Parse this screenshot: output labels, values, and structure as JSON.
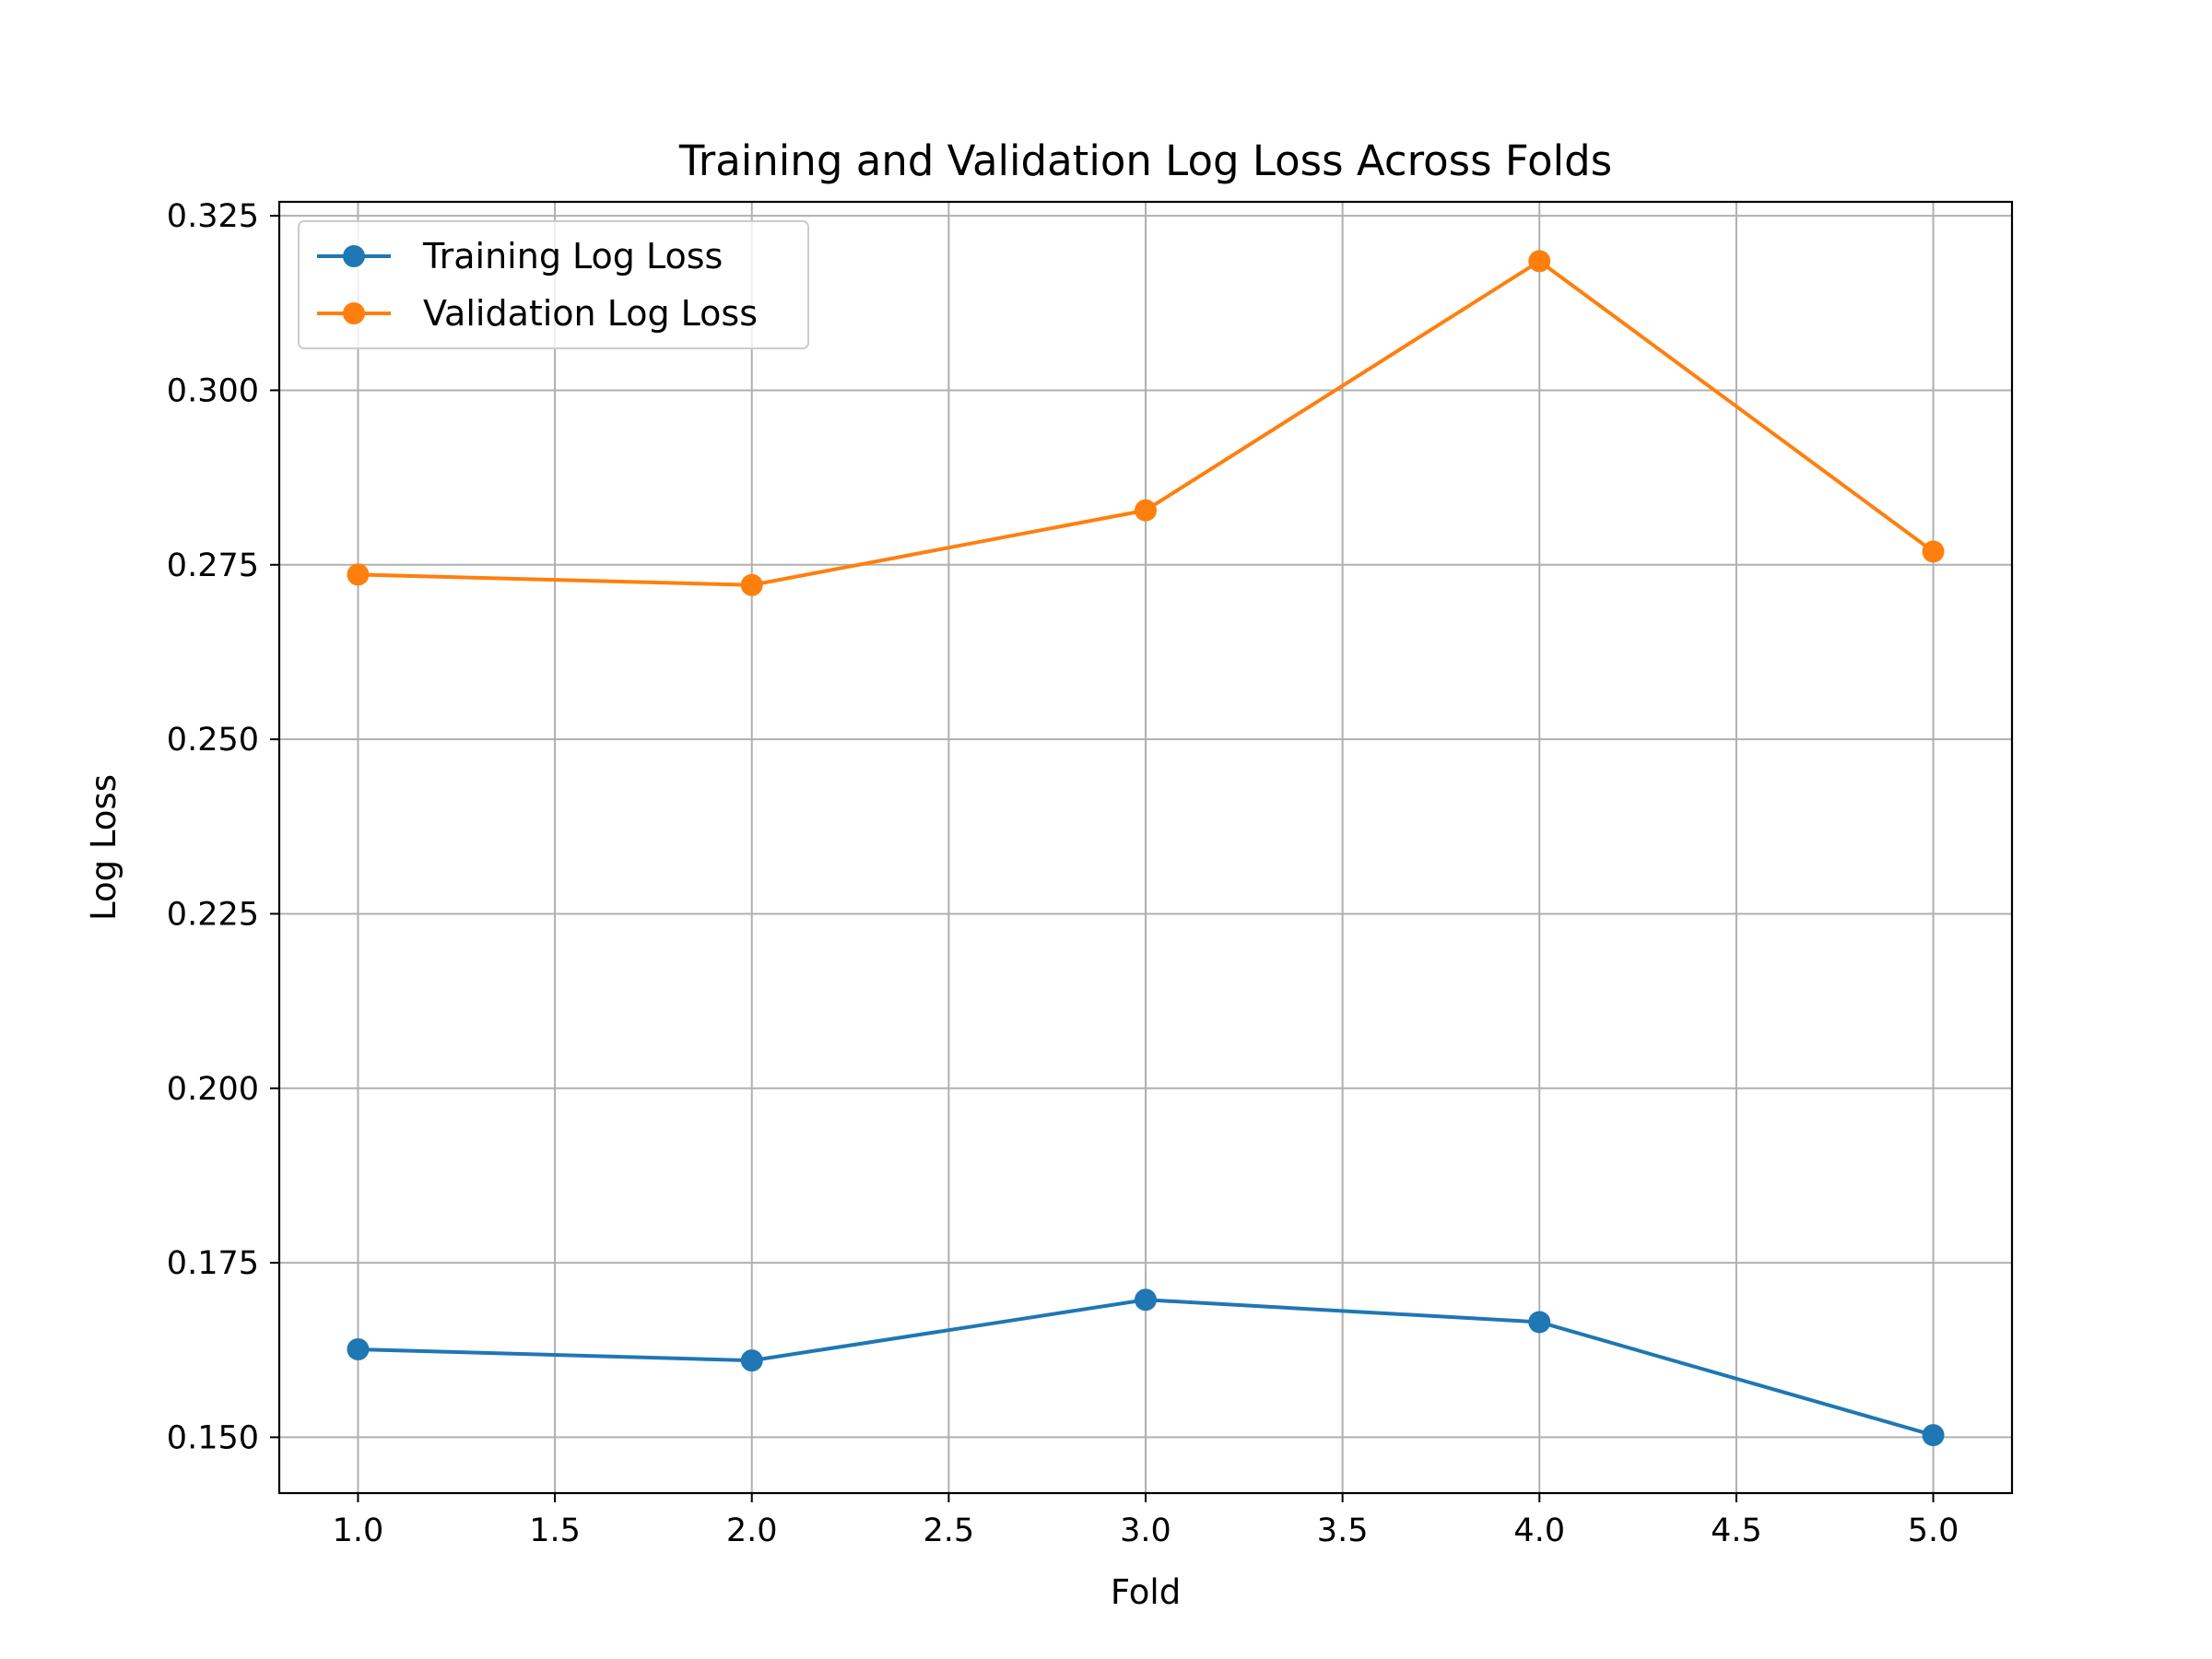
{
  "chart_data": {
    "type": "line",
    "title": "Training and Validation Log Loss Across Folds",
    "xlabel": "Fold",
    "ylabel": "Log Loss",
    "x": [
      1,
      2,
      3,
      4,
      5
    ],
    "xlim": [
      0.8,
      5.2
    ],
    "ylim": [
      0.142,
      0.327
    ],
    "xticks": [
      "1.0",
      "1.5",
      "2.0",
      "2.5",
      "3.0",
      "3.5",
      "4.0",
      "4.5",
      "5.0"
    ],
    "yticks": [
      "0.150",
      "0.175",
      "0.200",
      "0.225",
      "0.250",
      "0.275",
      "0.300",
      "0.325"
    ],
    "grid": true,
    "legend_position": "top-left",
    "series": [
      {
        "name": "Training Log Loss",
        "color": "#1f77b4",
        "marker": "circle",
        "values": [
          0.1626,
          0.161,
          0.1697,
          0.1665,
          0.1503
        ]
      },
      {
        "name": "Validation Log Loss",
        "color": "#ff7f0e",
        "marker": "circle",
        "values": [
          0.2736,
          0.2721,
          0.2828,
          0.3185,
          0.2769
        ]
      }
    ]
  }
}
